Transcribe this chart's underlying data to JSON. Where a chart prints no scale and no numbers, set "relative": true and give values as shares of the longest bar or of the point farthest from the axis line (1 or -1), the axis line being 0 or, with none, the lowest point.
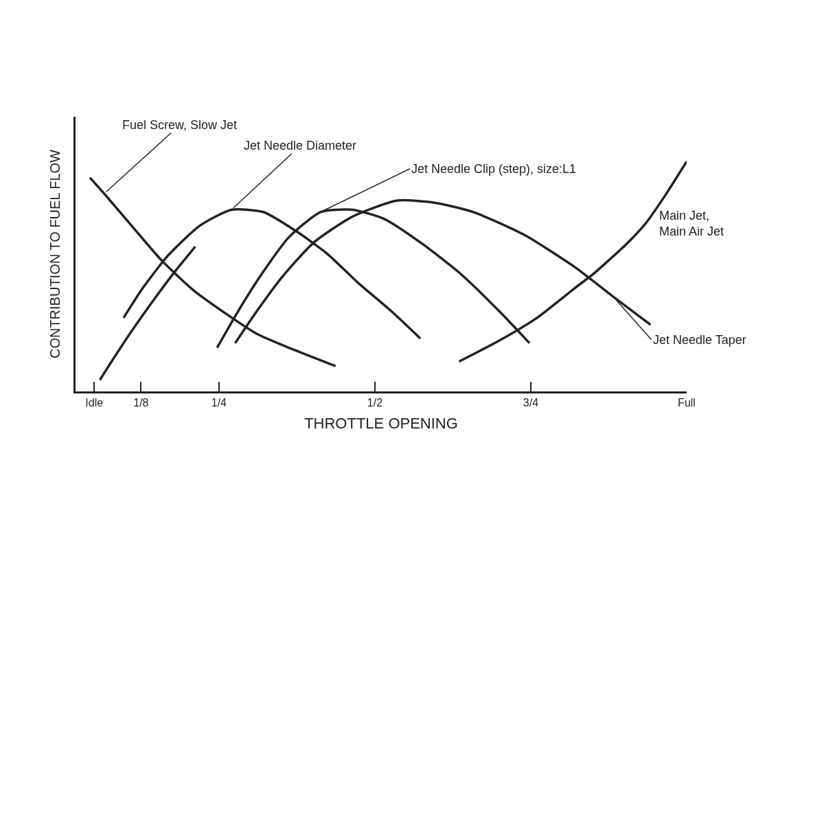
{
  "chart_data": {
    "type": "line",
    "relative": true,
    "xlabel": "THROTTLE OPENING",
    "ylabel": "CONTRIBUTION TO FUEL FLOW",
    "xlim": [
      0.02,
      1.0
    ],
    "xticks": [
      {
        "value": 0.05,
        "label": "Idle"
      },
      {
        "value": 0.125,
        "label": "1/8"
      },
      {
        "value": 0.25,
        "label": "1/4"
      },
      {
        "value": 0.5,
        "label": "1/2"
      },
      {
        "value": 0.75,
        "label": "3/4"
      },
      {
        "value": 1.0,
        "label": "Full"
      }
    ],
    "legend": false,
    "marker": "none",
    "line_style": "solid",
    "series": [
      {
        "name": "Fuel Screw, Slow Jet",
        "color": "#222222",
        "x": [
          0.043,
          0.066,
          0.107,
          0.158,
          0.209,
          0.26,
          0.311,
          0.362,
          0.437
        ],
        "values": [
          0.93,
          0.86,
          0.73,
          0.57,
          0.44,
          0.34,
          0.25,
          0.19,
          0.11
        ]
      },
      {
        "name": "Jet Needle Diameter",
        "color": "#222222",
        "x": [
          0.097,
          0.128,
          0.168,
          0.219,
          0.27,
          0.321,
          0.372,
          0.423,
          0.474,
          0.526,
          0.573
        ],
        "values": [
          0.32,
          0.45,
          0.59,
          0.72,
          0.79,
          0.78,
          0.7,
          0.6,
          0.47,
          0.35,
          0.23
        ]
      },
      {
        "color": "#222222",
        "x": [
          0.059,
          0.097,
          0.138,
          0.179,
          0.212
        ],
        "values": [
          0.05,
          0.21,
          0.37,
          0.52,
          0.63
        ]
      },
      {
        "name": "Jet Needle Clip (step), size:L1",
        "color": "#222222",
        "x": [
          0.247,
          0.281,
          0.321,
          0.362,
          0.413,
          0.464,
          0.515,
          0.577,
          0.638,
          0.699,
          0.748
        ],
        "values": [
          0.19,
          0.35,
          0.52,
          0.67,
          0.78,
          0.79,
          0.75,
          0.64,
          0.51,
          0.35,
          0.21
        ]
      },
      {
        "name": "Jet Needle Taper",
        "color": "#222222",
        "x": [
          0.276,
          0.311,
          0.352,
          0.403,
          0.464,
          0.536,
          0.597,
          0.658,
          0.74,
          0.821,
          0.883,
          0.942
        ],
        "values": [
          0.21,
          0.35,
          0.5,
          0.65,
          0.76,
          0.83,
          0.82,
          0.78,
          0.68,
          0.54,
          0.41,
          0.29
        ]
      },
      {
        "name": "Main Jet, Main Air Jet",
        "color": "#222222",
        "x": [
          0.635,
          0.699,
          0.76,
          0.821,
          0.85,
          0.903,
          0.934,
          0.965,
          1.0
        ],
        "values": [
          0.13,
          0.22,
          0.32,
          0.45,
          0.51,
          0.64,
          0.73,
          0.85,
          1.0
        ]
      }
    ]
  }
}
